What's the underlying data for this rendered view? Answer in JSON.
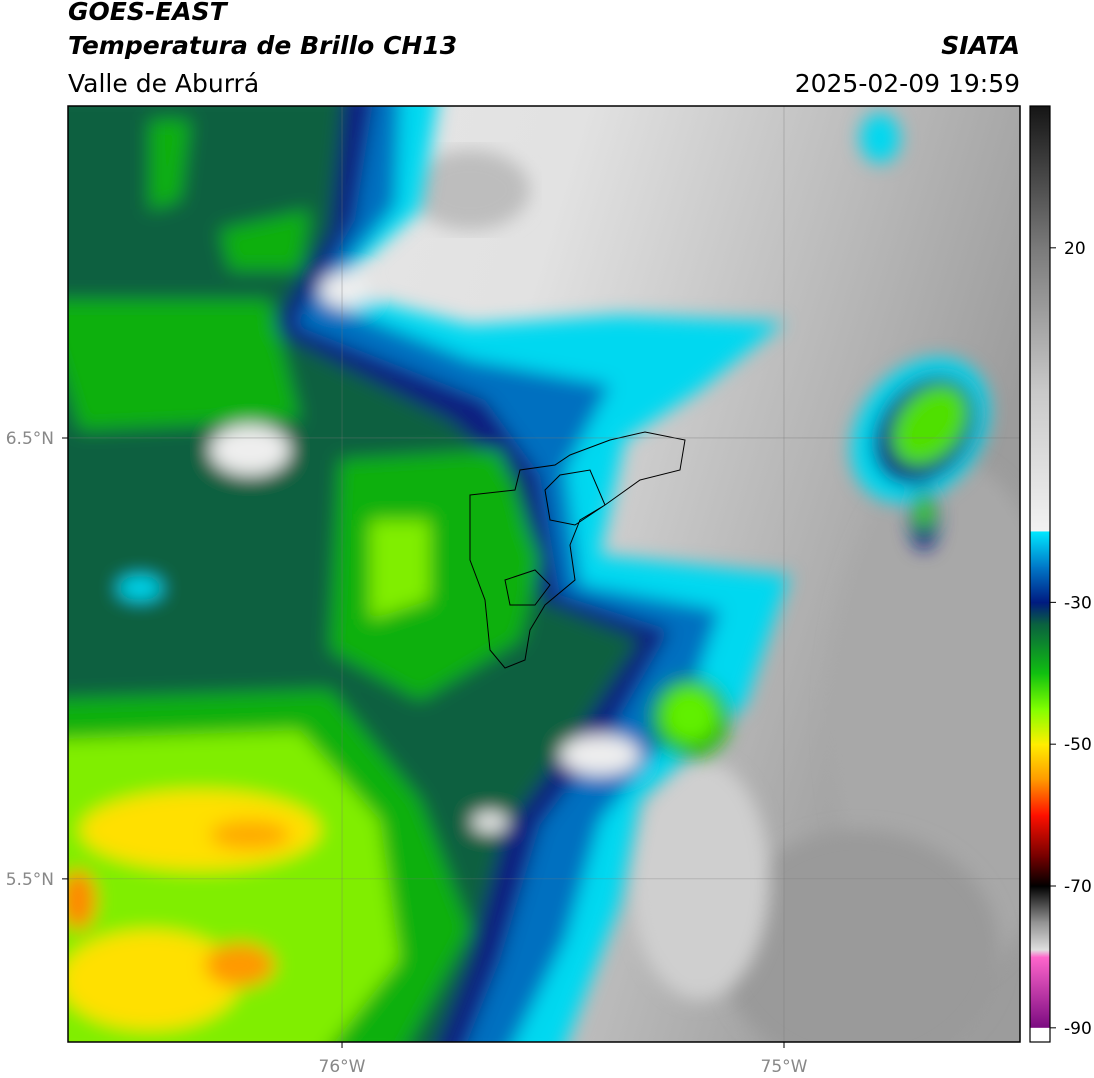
{
  "header": {
    "title": "GOES-EAST",
    "subtitle": "Temperatura de Brillo CH13",
    "region": "Valle de Aburrá",
    "source": "SIATA",
    "datetime": "2025-02-09 19:59"
  },
  "map": {
    "xlim": [
      -76.62,
      -74.466
    ],
    "ylim": [
      5.13,
      7.253
    ],
    "xticks": [
      {
        "value": -76,
        "label": "76°W"
      },
      {
        "value": -75,
        "label": "75°W"
      }
    ],
    "yticks": [
      {
        "value": 6.5,
        "label": "6.5°N"
      },
      {
        "value": 5.5,
        "label": "5.5°N"
      }
    ],
    "grid": true
  },
  "colorbar": {
    "lim": [
      -92,
      40
    ],
    "ticks": [
      20,
      -30,
      -50,
      -70,
      -90
    ],
    "stops": [
      {
        "value": 40,
        "color": "#151515"
      },
      {
        "value": 20,
        "color": "#7a7a7a"
      },
      {
        "value": 0,
        "color": "#c8c8c8"
      },
      {
        "value": -20,
        "color": "#f2f2f2"
      },
      {
        "value": -20,
        "color": "#00e8ff"
      },
      {
        "value": -25,
        "color": "#0078c8"
      },
      {
        "value": -30,
        "color": "#001a80"
      },
      {
        "value": -33,
        "color": "#0a6040"
      },
      {
        "value": -40,
        "color": "#10c010"
      },
      {
        "value": -45,
        "color": "#80ff00"
      },
      {
        "value": -50,
        "color": "#ffee00"
      },
      {
        "value": -55,
        "color": "#ff9900"
      },
      {
        "value": -60,
        "color": "#ff1000"
      },
      {
        "value": -66,
        "color": "#700000"
      },
      {
        "value": -70,
        "color": "#000000"
      },
      {
        "value": -75,
        "color": "#909090"
      },
      {
        "value": -79,
        "color": "#e0e0e0"
      },
      {
        "value": -80,
        "color": "#ff66cc"
      },
      {
        "value": -90,
        "color": "#7a0a80"
      },
      {
        "value": -90,
        "color": "#ffffff"
      },
      {
        "value": -92,
        "color": "#ffffff"
      }
    ]
  }
}
